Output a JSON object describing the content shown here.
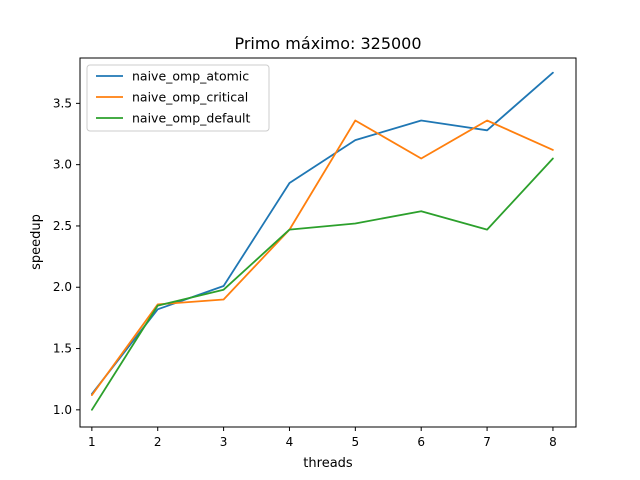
{
  "chart_data": {
    "type": "line",
    "title": "Primo máximo: 325000",
    "xlabel": "threads",
    "ylabel": "speedup",
    "x": [
      1,
      2,
      3,
      4,
      5,
      6,
      7,
      8
    ],
    "xlim": [
      0.82,
      8.35
    ],
    "ylim": [
      0.86,
      3.87
    ],
    "xticks": [
      "1",
      "2",
      "3",
      "4",
      "5",
      "6",
      "7",
      "8"
    ],
    "yticks": [
      "1.0",
      "1.5",
      "2.0",
      "2.5",
      "3.0",
      "3.5"
    ],
    "legend_position": "top-left",
    "grid": false,
    "series": [
      {
        "name": "naive_omp_atomic",
        "color": "#1f77b4",
        "values": [
          1.13,
          1.82,
          2.01,
          2.85,
          3.2,
          3.36,
          3.28,
          3.75
        ]
      },
      {
        "name": "naive_omp_critical",
        "color": "#ff7f0e",
        "values": [
          1.12,
          1.86,
          1.9,
          2.47,
          3.36,
          3.05,
          3.36,
          3.12
        ]
      },
      {
        "name": "naive_omp_default",
        "color": "#2ca02c",
        "values": [
          1.0,
          1.85,
          1.98,
          2.47,
          2.52,
          2.62,
          2.47,
          3.05
        ]
      }
    ]
  }
}
